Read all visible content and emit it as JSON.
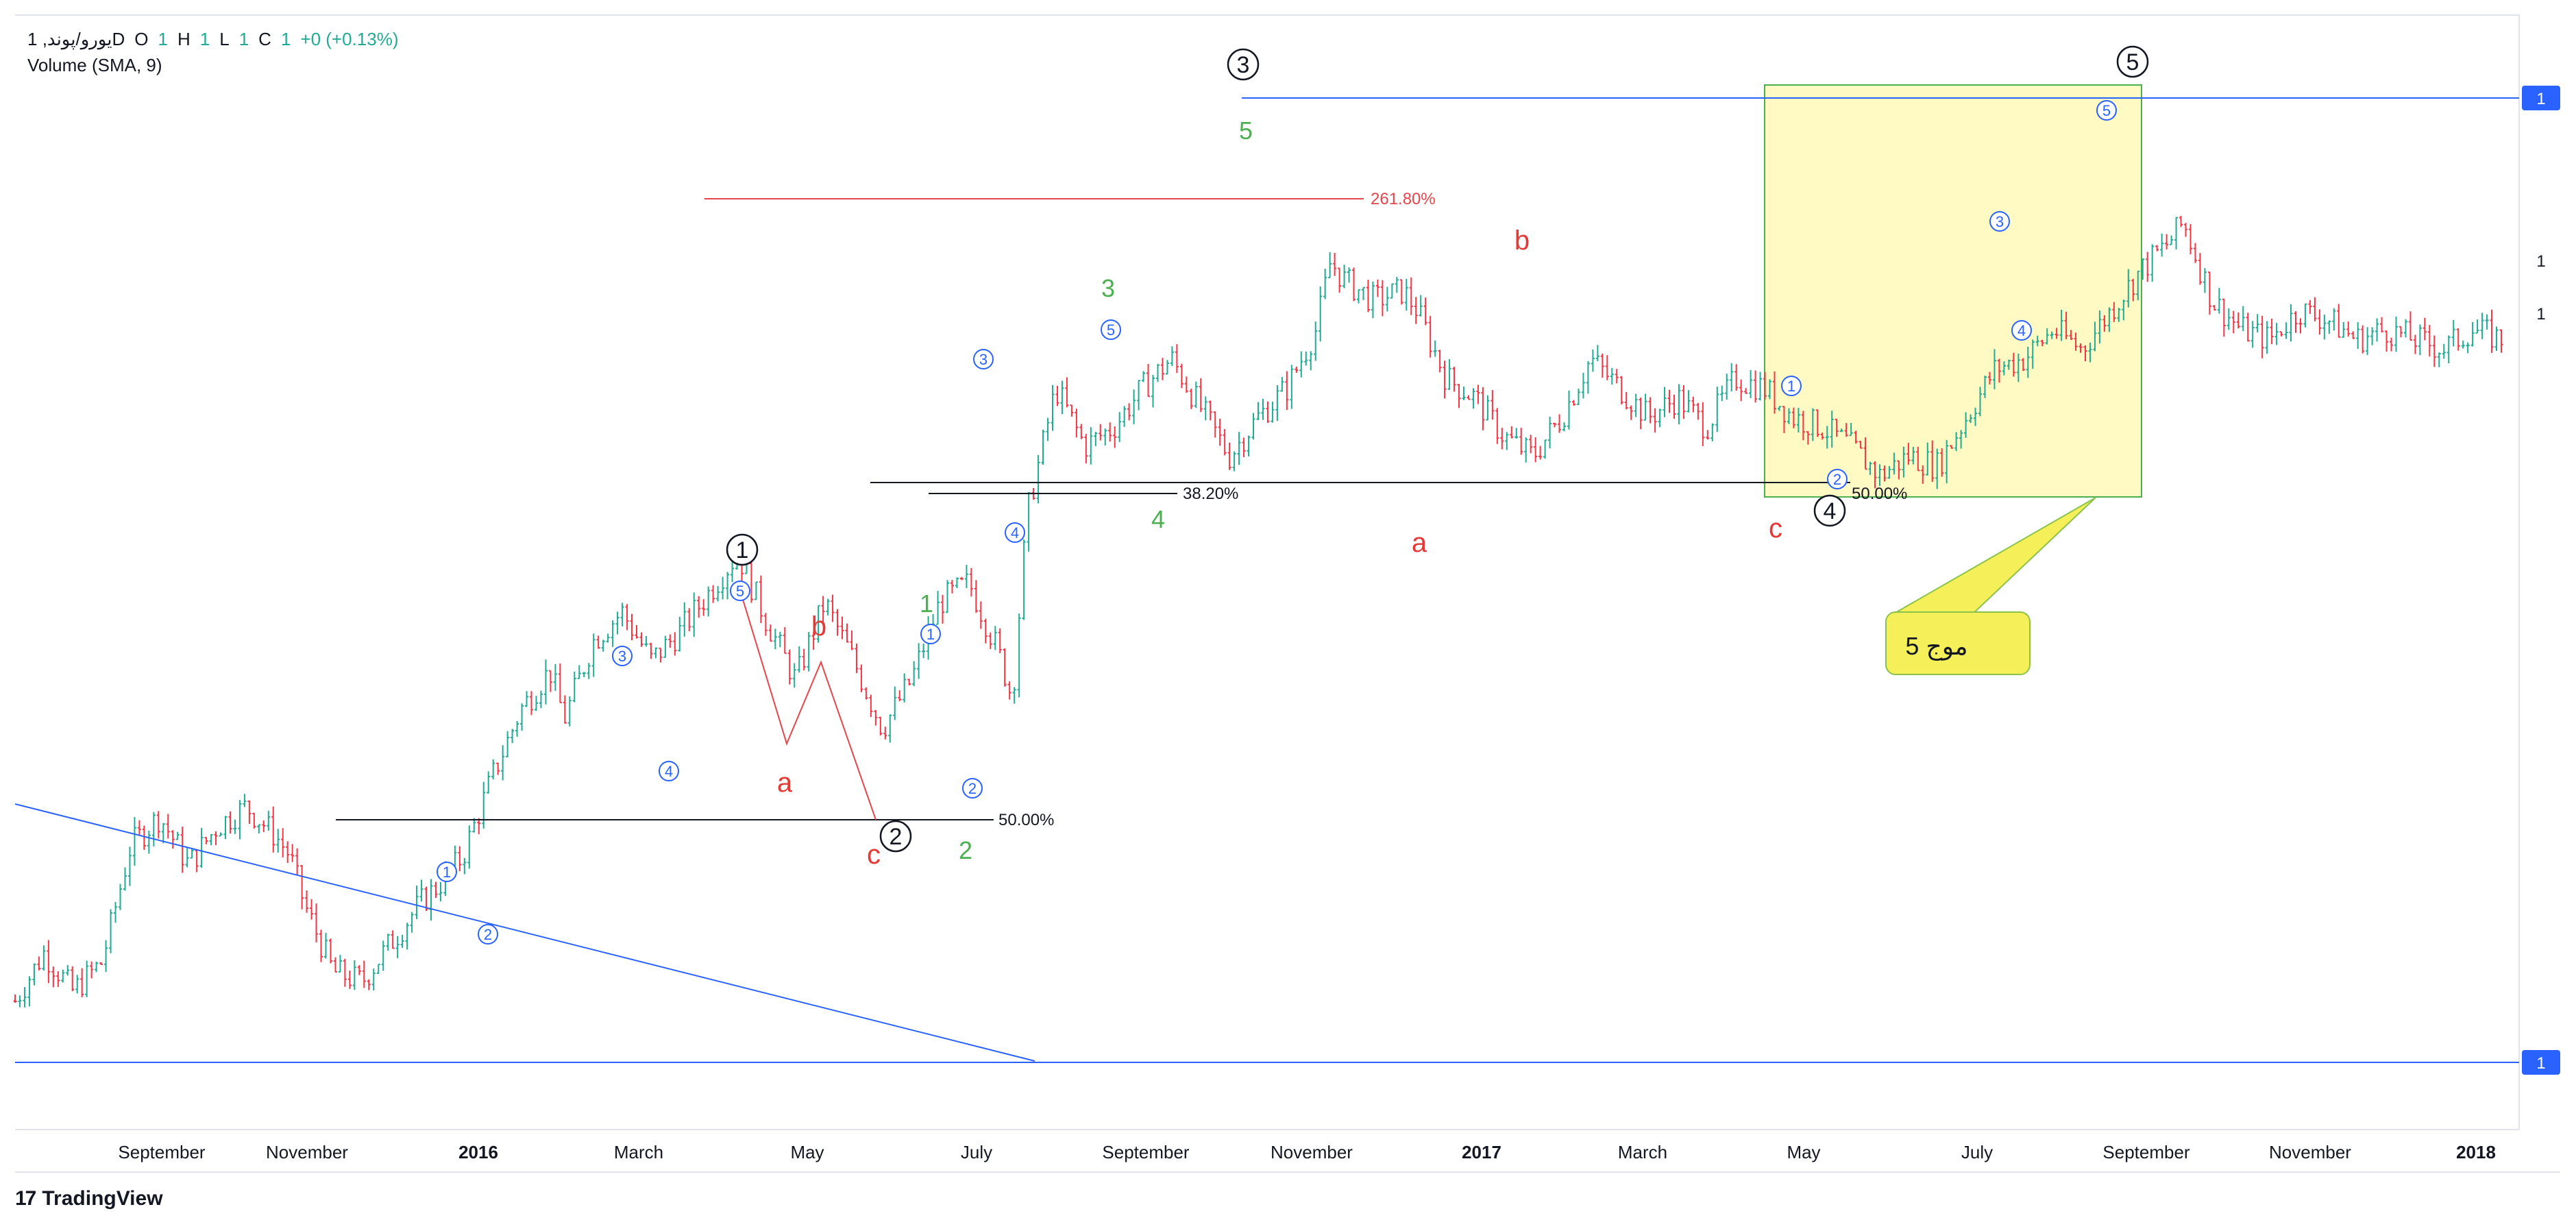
{
  "legend": {
    "symbol": "یورو/پوند, 1D",
    "open_label": "O",
    "open_value": "1",
    "high_label": "H",
    "high_value": "1",
    "low_label": "L",
    "low_value": "1",
    "close_label": "C",
    "close_value": "1",
    "change": "+0 (+0.13%)",
    "indicator": "Volume (SMA, 9)"
  },
  "brand": {
    "name": "TradingView",
    "mark": "17"
  },
  "colors": {
    "up": "#22ab94",
    "down": "#f23645",
    "trend": "#2962ff",
    "fib": "#e5454b",
    "wave_green": "#4caf50",
    "wave_red": "#e53935",
    "box_fill": "#fff9c4",
    "box_border": "#4caf50",
    "callout": "#f5ef5a"
  },
  "chart_data": {
    "type": "candlestick",
    "x_axis_labels": [
      "September",
      "November",
      "2016",
      "March",
      "May",
      "July",
      "September",
      "November",
      "2017",
      "March",
      "May",
      "July",
      "September",
      "November",
      "2018"
    ],
    "y_axis_labels": [
      "1",
      "1",
      "1",
      "1"
    ],
    "price_path": [
      [
        0,
        0.07
      ],
      [
        2,
        0.12
      ],
      [
        4,
        0.08
      ],
      [
        6,
        0.11
      ],
      [
        8,
        0.23
      ],
      [
        10,
        0.26
      ],
      [
        12,
        0.21
      ],
      [
        14,
        0.25
      ],
      [
        16,
        0.27
      ],
      [
        18,
        0.24
      ],
      [
        19,
        0.22
      ],
      [
        20,
        0.17
      ],
      [
        22,
        0.1
      ],
      [
        24,
        0.09
      ],
      [
        26,
        0.13
      ],
      [
        28,
        0.17
      ],
      [
        30,
        0.2
      ],
      [
        31,
        0.22
      ],
      [
        33,
        0.3
      ],
      [
        35,
        0.37
      ],
      [
        37,
        0.41
      ],
      [
        38,
        0.36
      ],
      [
        40,
        0.44
      ],
      [
        42,
        0.47
      ],
      [
        44,
        0.42
      ],
      [
        46,
        0.45
      ],
      [
        48,
        0.49
      ],
      [
        50,
        0.53
      ],
      [
        52,
        0.46
      ],
      [
        54,
        0.4
      ],
      [
        56,
        0.48
      ],
      [
        58,
        0.42
      ],
      [
        60,
        0.35
      ],
      [
        62,
        0.4
      ],
      [
        64,
        0.48
      ],
      [
        66,
        0.5
      ],
      [
        68,
        0.43
      ],
      [
        69,
        0.38
      ],
      [
        70,
        0.57
      ],
      [
        72,
        0.7
      ],
      [
        74,
        0.64
      ],
      [
        76,
        0.66
      ],
      [
        78,
        0.7
      ],
      [
        80,
        0.73
      ],
      [
        82,
        0.68
      ],
      [
        84,
        0.63
      ],
      [
        86,
        0.67
      ],
      [
        88,
        0.7
      ],
      [
        90,
        0.76
      ],
      [
        91,
        0.83
      ],
      [
        92,
        0.81
      ],
      [
        94,
        0.79
      ],
      [
        96,
        0.8
      ],
      [
        97,
        0.78
      ],
      [
        99,
        0.71
      ],
      [
        101,
        0.69
      ],
      [
        103,
        0.65
      ],
      [
        105,
        0.63
      ],
      [
        107,
        0.67
      ],
      [
        109,
        0.73
      ],
      [
        111,
        0.7
      ],
      [
        113,
        0.67
      ],
      [
        115,
        0.69
      ],
      [
        117,
        0.66
      ],
      [
        119,
        0.71
      ],
      [
        121,
        0.7
      ],
      [
        123,
        0.67
      ],
      [
        125,
        0.66
      ],
      [
        127,
        0.64
      ],
      [
        129,
        0.61
      ],
      [
        131,
        0.63
      ],
      [
        133,
        0.62
      ],
      [
        135,
        0.67
      ],
      [
        137,
        0.72
      ],
      [
        139,
        0.73
      ],
      [
        141,
        0.76
      ],
      [
        143,
        0.74
      ],
      [
        145,
        0.78
      ],
      [
        147,
        0.82
      ],
      [
        149,
        0.85
      ],
      [
        150,
        0.87
      ],
      [
        152,
        0.79
      ],
      [
        154,
        0.76
      ],
      [
        156,
        0.75
      ],
      [
        158,
        0.78
      ],
      [
        160,
        0.77
      ],
      [
        162,
        0.75
      ],
      [
        164,
        0.76
      ],
      [
        166,
        0.75
      ],
      [
        168,
        0.74
      ],
      [
        170,
        0.76
      ],
      [
        172,
        0.75
      ]
    ],
    "annotations": {
      "fib_261": "261.80%",
      "fib_382": "38.20%",
      "fib_50_a": "50.00%",
      "fib_50_b": "50.00%",
      "wave_major": [
        "1",
        "2",
        "3",
        "4",
        "5"
      ],
      "wave_minor": [
        "1",
        "2",
        "3",
        "4",
        "5"
      ],
      "wave_green": [
        "1",
        "2",
        "3",
        "4",
        "5"
      ],
      "wave_abc": [
        "a",
        "b",
        "c"
      ],
      "callout_text": "موج 5"
    },
    "price_tags": [
      "1",
      "1",
      "1",
      "1"
    ]
  }
}
